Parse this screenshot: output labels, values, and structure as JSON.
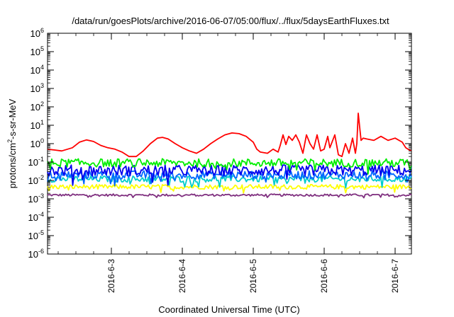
{
  "chart_data": {
    "type": "line",
    "title": "/data/run/goesPlots/archive/2016-06-07/05:00/flux/../flux/5daysEarthFluxes.txt",
    "xlabel": "Coordinated Universal Time (UTC)",
    "ylabel": {
      "prefix": "protons/cm",
      "sup": "2",
      "suffix": "-s-sr-MeV"
    },
    "yscale": "log",
    "ylim_exponents": [
      -6,
      6
    ],
    "ytick_labels": [
      {
        "base": "10",
        "exp": "6"
      },
      {
        "base": "10",
        "exp": "5"
      },
      {
        "base": "10",
        "exp": "4"
      },
      {
        "base": "10",
        "exp": "3"
      },
      {
        "base": "10",
        "exp": "2"
      },
      {
        "base": "10",
        "exp": "1"
      },
      {
        "base": "10",
        "exp": "0"
      },
      {
        "base": "10",
        "exp": "-1"
      },
      {
        "base": "10",
        "exp": "-2"
      },
      {
        "base": "10",
        "exp": "-3"
      },
      {
        "base": "10",
        "exp": "-4"
      },
      {
        "base": "10",
        "exp": "-5"
      },
      {
        "base": "10",
        "exp": "-6"
      }
    ],
    "xlim_days": [
      2.1,
      7.23
    ],
    "xticks": [
      {
        "label": "2016-6-3",
        "day": 3
      },
      {
        "label": "2016-6-4",
        "day": 4
      },
      {
        "label": "2016-6-5",
        "day": 5
      },
      {
        "label": "2016-6-6",
        "day": 6
      },
      {
        "label": "2016-6-7",
        "day": 7
      }
    ],
    "grid": false,
    "series": [
      {
        "color": "#ff0000",
        "x": [
          2.1,
          2.2,
          2.3,
          2.45,
          2.55,
          2.65,
          2.75,
          2.85,
          2.95,
          3.05,
          3.15,
          3.25,
          3.35,
          3.45,
          3.55,
          3.65,
          3.72,
          3.8,
          3.9,
          4.0,
          4.1,
          4.2,
          4.3,
          4.4,
          4.5,
          4.6,
          4.7,
          4.8,
          4.9,
          5.0,
          5.05,
          5.1,
          5.2,
          5.28,
          5.35,
          5.38,
          5.42,
          5.46,
          5.5,
          5.55,
          5.6,
          5.65,
          5.7,
          5.75,
          5.8,
          5.85,
          5.9,
          5.95,
          6.0,
          6.05,
          6.08,
          6.12,
          6.15,
          6.2,
          6.25,
          6.3,
          6.35,
          6.4,
          6.44,
          6.46,
          6.48,
          6.5,
          6.52,
          6.55,
          6.6,
          6.7,
          6.8,
          6.9,
          7.0,
          7.1,
          7.15,
          7.2,
          7.23
        ],
        "y": [
          0.5,
          0.45,
          0.4,
          0.6,
          1.2,
          1.6,
          1.3,
          0.8,
          0.6,
          0.5,
          0.35,
          0.2,
          0.2,
          0.4,
          1.0,
          2.0,
          2.2,
          1.8,
          1.0,
          0.6,
          0.4,
          0.3,
          0.5,
          1.0,
          1.8,
          3.0,
          3.8,
          3.5,
          2.5,
          1.2,
          0.5,
          0.35,
          0.3,
          0.5,
          0.35,
          0.8,
          3.0,
          0.9,
          2.5,
          1.5,
          3.0,
          1.2,
          0.3,
          3.0,
          1.0,
          0.5,
          3.0,
          0.4,
          0.5,
          2.5,
          0.6,
          1.5,
          3.0,
          0.25,
          0.2,
          1.0,
          0.3,
          2.0,
          0.3,
          1.0,
          45.0,
          8.0,
          1.5,
          2.0,
          1.8,
          1.5,
          2.5,
          1.5,
          2.0,
          1.2,
          0.6,
          0.45,
          0.4
        ]
      },
      {
        "color": "#00ee00",
        "center": 0.09,
        "noise": 0.45
      },
      {
        "color": "#0000ee",
        "center": 0.035,
        "noise": 0.6
      },
      {
        "color": "#0066ff",
        "center": 0.02,
        "noise": 0.45
      },
      {
        "color": "#00cccc",
        "center": 0.012,
        "noise": 0.35
      },
      {
        "color": "#ffff00",
        "center": 0.0045,
        "noise": 0.25
      },
      {
        "color": "#7f2f7f",
        "center": 0.0016,
        "noise": 0.12
      }
    ]
  }
}
